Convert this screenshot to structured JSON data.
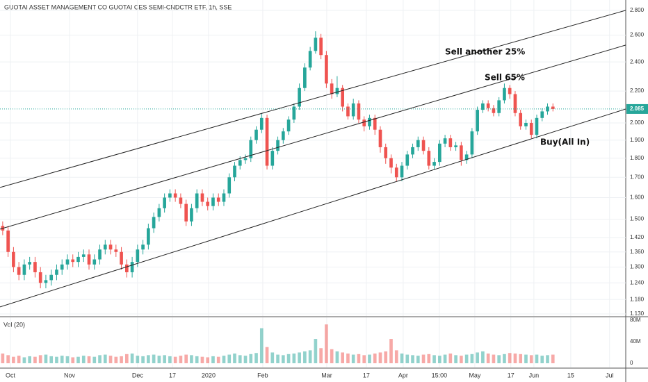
{
  "chart_data": {
    "type": "candlestick",
    "title": "GUOTAI ASSET MANAGEMENT CO GUOTAI CES SEMI-CNDCTR ETF, 1h, SSE",
    "volume_title": "Vol (20)",
    "log_scale": true,
    "grid": true,
    "up_color": "#26a69a",
    "down_color": "#ef5350",
    "line_color": "#222222",
    "xlim": [
      -0.5,
      115.5
    ],
    "xticks": [
      {
        "value": 1.43,
        "label": "Oct"
      },
      {
        "value": 12.39,
        "label": "Nov"
      },
      {
        "value": 25.0,
        "label": "Dec"
      },
      {
        "value": 31.46,
        "label": "17"
      },
      {
        "value": 38.16,
        "label": "2020"
      },
      {
        "value": 48.21,
        "label": "Feb"
      },
      {
        "value": 60.07,
        "label": "Mar"
      },
      {
        "value": 67.41,
        "label": "17"
      },
      {
        "value": 74.24,
        "label": "Apr"
      },
      {
        "value": 80.94,
        "label": "15:00"
      },
      {
        "value": 87.52,
        "label": "May"
      },
      {
        "value": 94.2,
        "label": "17"
      },
      {
        "value": 98.47,
        "label": "Jun"
      },
      {
        "value": 105.3,
        "label": "15"
      },
      {
        "value": 112.5,
        "label": "Jul"
      }
    ],
    "ylim": [
      1.123,
      2.888
    ],
    "yticks": [
      {
        "value": 1.13,
        "label": "1.130"
      },
      {
        "value": 1.18,
        "label": "1.180"
      },
      {
        "value": 1.24,
        "label": "1.240"
      },
      {
        "value": 1.3,
        "label": "1.300"
      },
      {
        "value": 1.36,
        "label": "1.360"
      },
      {
        "value": 1.42,
        "label": "1.420"
      },
      {
        "value": 1.5,
        "label": "1.500"
      },
      {
        "value": 1.6,
        "label": "1.600"
      },
      {
        "value": 1.7,
        "label": "1.700"
      },
      {
        "value": 1.8,
        "label": "1.800"
      },
      {
        "value": 1.9,
        "label": "1.900"
      },
      {
        "value": 2.0,
        "label": "2.000"
      },
      {
        "value": 2.2,
        "label": "2.200"
      },
      {
        "value": 2.4,
        "label": "2.400"
      },
      {
        "value": 2.6,
        "label": "2.600"
      },
      {
        "value": 2.8,
        "label": "2.800"
      }
    ],
    "last_price": {
      "value": 2.085,
      "label": "2.085"
    },
    "volume_ylim": [
      0,
      85
    ],
    "volume_yticks": [
      0,
      {
        "value": 40,
        "label": "40M"
      },
      {
        "value": 80,
        "label": "80M"
      }
    ],
    "open": [
      1.47,
      1.45,
      1.36,
      1.3,
      1.27,
      1.31,
      1.32,
      1.28,
      1.24,
      1.25,
      1.27,
      1.29,
      1.31,
      1.33,
      1.32,
      1.34,
      1.35,
      1.31,
      1.33,
      1.37,
      1.39,
      1.37,
      1.36,
      1.31,
      1.28,
      1.32,
      1.37,
      1.39,
      1.46,
      1.51,
      1.55,
      1.6,
      1.62,
      1.6,
      1.57,
      1.49,
      1.55,
      1.62,
      1.58,
      1.56,
      1.6,
      1.58,
      1.62,
      1.7,
      1.76,
      1.79,
      1.8,
      1.9,
      1.96,
      2.03,
      1.76,
      1.84,
      1.9,
      1.95,
      2.02,
      2.1,
      2.22,
      2.36,
      2.48,
      2.58,
      2.45,
      2.25,
      2.18,
      2.22,
      2.1,
      2.04,
      2.12,
      2.02,
      1.98,
      2.03,
      1.96,
      1.86,
      1.8,
      1.75,
      1.7,
      1.76,
      1.82,
      1.86,
      1.9,
      1.84,
      1.76,
      1.78,
      1.88,
      1.91,
      1.86,
      1.87,
      1.79,
      1.82,
      1.95,
      2.08,
      2.12,
      2.09,
      2.06,
      2.14,
      2.22,
      2.18,
      2.06,
      1.98,
      2.0,
      1.93,
      2.03,
      2.07,
      2.1
    ],
    "high": [
      1.49,
      1.47,
      1.38,
      1.32,
      1.33,
      1.34,
      1.34,
      1.3,
      1.27,
      1.29,
      1.31,
      1.33,
      1.35,
      1.35,
      1.36,
      1.37,
      1.37,
      1.35,
      1.39,
      1.41,
      1.41,
      1.39,
      1.38,
      1.33,
      1.34,
      1.39,
      1.41,
      1.48,
      1.53,
      1.57,
      1.62,
      1.64,
      1.64,
      1.62,
      1.59,
      1.57,
      1.64,
      1.64,
      1.6,
      1.62,
      1.62,
      1.64,
      1.72,
      1.78,
      1.81,
      1.82,
      1.92,
      1.98,
      2.06,
      2.05,
      1.86,
      1.92,
      1.97,
      2.04,
      2.12,
      2.25,
      2.39,
      2.51,
      2.63,
      2.61,
      2.48,
      2.28,
      2.3,
      2.24,
      2.12,
      2.15,
      2.14,
      2.04,
      2.05,
      2.05,
      1.98,
      1.88,
      1.82,
      1.77,
      1.78,
      1.84,
      1.88,
      1.92,
      1.92,
      1.86,
      1.8,
      1.9,
      1.93,
      1.93,
      1.89,
      1.89,
      1.84,
      1.97,
      2.1,
      2.14,
      2.14,
      2.11,
      2.16,
      2.25,
      2.24,
      2.2,
      2.08,
      2.02,
      2.02,
      2.05,
      2.09,
      2.12,
      2.12
    ],
    "low": [
      1.43,
      1.34,
      1.28,
      1.25,
      1.25,
      1.29,
      1.26,
      1.22,
      1.22,
      1.23,
      1.25,
      1.27,
      1.29,
      1.3,
      1.3,
      1.32,
      1.29,
      1.29,
      1.31,
      1.35,
      1.35,
      1.34,
      1.29,
      1.26,
      1.26,
      1.3,
      1.35,
      1.37,
      1.44,
      1.49,
      1.53,
      1.58,
      1.58,
      1.55,
      1.47,
      1.47,
      1.53,
      1.56,
      1.54,
      1.54,
      1.56,
      1.56,
      1.6,
      1.68,
      1.74,
      1.77,
      1.78,
      1.88,
      1.94,
      1.74,
      1.74,
      1.82,
      1.88,
      1.93,
      2.0,
      2.08,
      2.2,
      2.34,
      2.46,
      2.42,
      2.22,
      2.15,
      2.16,
      2.07,
      2.02,
      2.02,
      2.0,
      1.95,
      1.96,
      1.93,
      1.83,
      1.77,
      1.72,
      1.68,
      1.68,
      1.74,
      1.8,
      1.84,
      1.82,
      1.74,
      1.74,
      1.76,
      1.86,
      1.84,
      1.84,
      1.76,
      1.77,
      1.8,
      1.93,
      2.06,
      2.07,
      2.04,
      2.04,
      2.12,
      2.15,
      2.04,
      1.96,
      1.96,
      1.91,
      1.91,
      2.01,
      2.05,
      2.07
    ],
    "close": [
      1.45,
      1.36,
      1.3,
      1.27,
      1.31,
      1.32,
      1.28,
      1.24,
      1.25,
      1.27,
      1.29,
      1.31,
      1.33,
      1.32,
      1.34,
      1.35,
      1.31,
      1.33,
      1.37,
      1.39,
      1.37,
      1.36,
      1.31,
      1.28,
      1.32,
      1.37,
      1.39,
      1.46,
      1.51,
      1.55,
      1.6,
      1.62,
      1.6,
      1.57,
      1.49,
      1.55,
      1.62,
      1.58,
      1.56,
      1.6,
      1.58,
      1.62,
      1.7,
      1.76,
      1.79,
      1.8,
      1.9,
      1.96,
      2.03,
      1.76,
      1.84,
      1.9,
      1.95,
      2.02,
      2.1,
      2.22,
      2.36,
      2.48,
      2.58,
      2.45,
      2.25,
      2.18,
      2.22,
      2.1,
      2.04,
      2.12,
      2.02,
      1.98,
      2.03,
      1.96,
      1.86,
      1.8,
      1.75,
      1.7,
      1.76,
      1.82,
      1.86,
      1.9,
      1.84,
      1.76,
      1.78,
      1.88,
      1.91,
      1.86,
      1.87,
      1.79,
      1.82,
      1.95,
      2.08,
      2.12,
      2.09,
      2.06,
      2.14,
      2.22,
      2.18,
      2.06,
      1.98,
      2.0,
      1.93,
      2.03,
      2.07,
      2.1,
      2.085
    ],
    "volume": [
      18,
      15,
      12,
      14,
      11,
      13,
      12,
      15,
      16,
      13,
      12,
      14,
      13,
      11,
      12,
      14,
      13,
      12,
      15,
      16,
      14,
      12,
      13,
      17,
      18,
      14,
      13,
      15,
      16,
      14,
      15,
      13,
      12,
      14,
      16,
      15,
      13,
      12,
      11,
      13,
      12,
      14,
      16,
      18,
      15,
      14,
      17,
      19,
      65,
      30,
      20,
      16,
      15,
      17,
      18,
      20,
      22,
      24,
      45,
      28,
      72,
      26,
      22,
      20,
      18,
      16,
      17,
      15,
      16,
      18,
      20,
      22,
      45,
      24,
      18,
      16,
      15,
      14,
      16,
      17,
      15,
      14,
      16,
      18,
      15,
      14,
      16,
      17,
      20,
      22,
      18,
      16,
      15,
      17,
      19,
      18,
      17,
      16,
      15,
      16,
      14,
      15,
      16
    ],
    "trendlines": [
      {
        "x": [
          -0.5,
          115.5
        ],
        "y": [
          1.649,
          2.8
        ]
      },
      {
        "x": [
          -0.5,
          115.5
        ],
        "y": [
          1.456,
          2.524
        ]
      },
      {
        "x": [
          -0.5,
          115.5
        ],
        "y": [
          1.154,
          2.085
        ]
      }
    ],
    "annotations": [
      "Sell another 25%",
      "Sell 65%",
      "Buy(All In)"
    ]
  }
}
